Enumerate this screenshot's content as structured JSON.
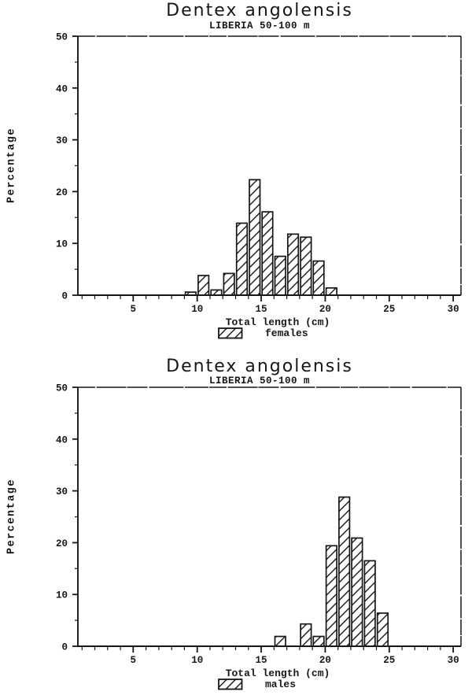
{
  "page": {
    "background": "#ffffff",
    "ink": "#161616"
  },
  "chart_data": [
    {
      "type": "bar",
      "title": "Dentex angolensis",
      "subtitle": "LIBERIA 50-100 m",
      "xlabel": "Total length (cm)",
      "ylabel": "Percentage",
      "legend": "females",
      "legend_position": "below-x-axis",
      "bar_style": "diagonal-hatch",
      "bin_width_cm": 1,
      "xlim": [
        0.6,
        30.6
      ],
      "ylim": [
        0,
        50
      ],
      "x_tick_labels": [
        5,
        10,
        15,
        20,
        25,
        30
      ],
      "x_minor_tick_step": 1,
      "y_tick_labels": [
        0,
        10,
        20,
        30,
        40,
        50
      ],
      "y_minor_tick_step": 5,
      "grid": "off",
      "categories": [
        9,
        10,
        11,
        12,
        13,
        14,
        15,
        16,
        17,
        18,
        19,
        20
      ],
      "values": [
        0.6,
        3.8,
        1.0,
        4.2,
        13.9,
        22.3,
        16.1,
        7.5,
        11.8,
        11.2,
        6.6,
        1.4
      ]
    },
    {
      "type": "bar",
      "title": "Dentex angolensis",
      "subtitle": "LIBERIA 50-100 m",
      "xlabel": "Total length (cm)",
      "ylabel": "Percentage",
      "legend": "males",
      "legend_position": "below-x-axis",
      "bar_style": "diagonal-hatch",
      "bin_width_cm": 1,
      "xlim": [
        0.6,
        30.6
      ],
      "ylim": [
        0,
        50
      ],
      "x_tick_labels": [
        5,
        10,
        15,
        20,
        25,
        30
      ],
      "x_minor_tick_step": 1,
      "y_tick_labels": [
        0,
        10,
        20,
        30,
        40,
        50
      ],
      "y_minor_tick_step": 5,
      "grid": "off",
      "categories": [
        16,
        17,
        18,
        19,
        20,
        21,
        22,
        23,
        24
      ],
      "values": [
        1.9,
        0,
        4.3,
        1.9,
        19.4,
        28.8,
        20.9,
        16.5,
        6.4
      ]
    }
  ]
}
